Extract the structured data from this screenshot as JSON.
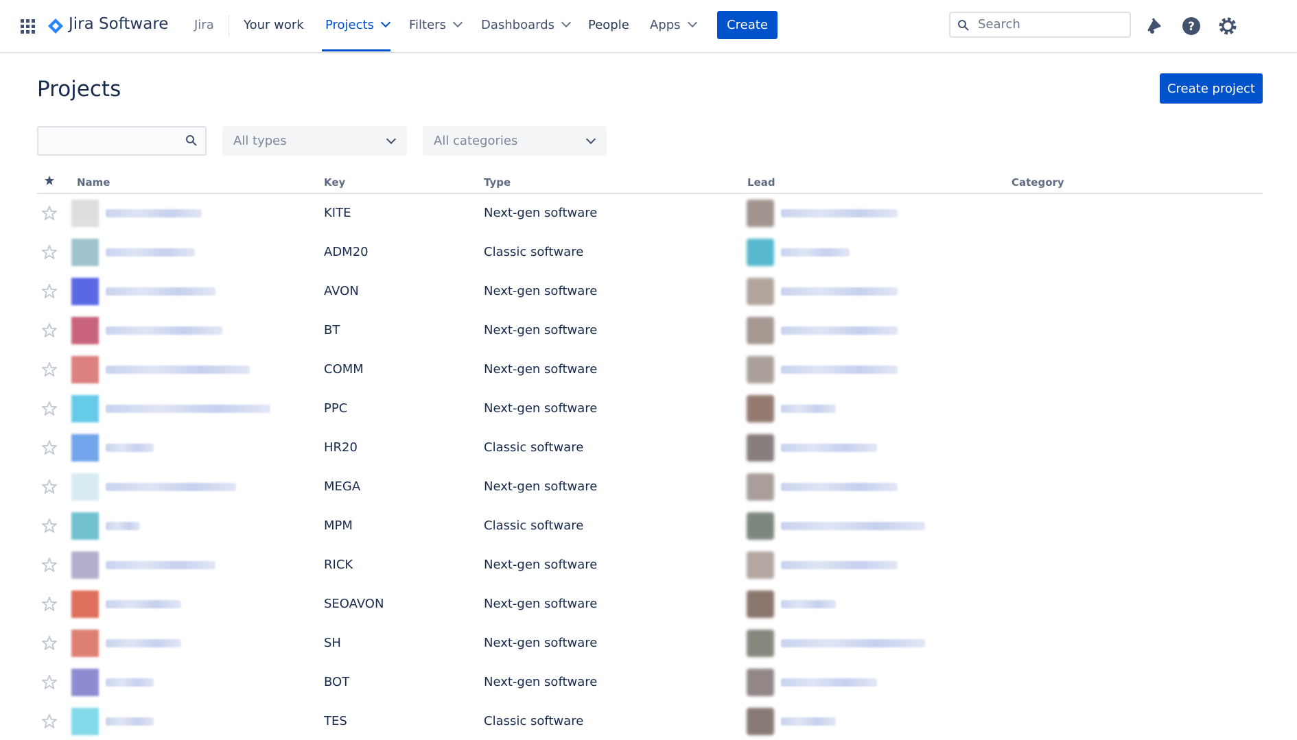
{
  "nav": {
    "product": "Jira Software",
    "context": "Jira",
    "items": [
      "Your work",
      "Projects",
      "Filters",
      "Dashboards",
      "People",
      "Apps"
    ],
    "create": "Create",
    "search": "Search"
  },
  "page": {
    "title": "Projects",
    "create_project": "Create project",
    "filters": {
      "types": "All types",
      "categories": "All categories"
    }
  },
  "table": {
    "headers": [
      "Name",
      "Key",
      "Type",
      "Lead",
      "Category"
    ],
    "rows": [
      [
        "KITE",
        "Next-gen software"
      ],
      [
        "ADM20",
        "Classic software"
      ],
      [
        "AVON",
        "Next-gen software"
      ],
      [
        "BT",
        "Next-gen software"
      ],
      [
        "COMM",
        "Next-gen software"
      ],
      [
        "PPC",
        "Next-gen software"
      ],
      [
        "HR20",
        "Classic software"
      ],
      [
        "MEGA",
        "Next-gen software"
      ],
      [
        "MPM",
        "Classic software"
      ],
      [
        "RICK",
        "Next-gen software"
      ],
      [
        "SEOAVON",
        "Next-gen software"
      ],
      [
        "SH",
        "Next-gen software"
      ],
      [
        "BOT",
        "Next-gen software"
      ],
      [
        "TES",
        "Classic software"
      ]
    ]
  }
}
